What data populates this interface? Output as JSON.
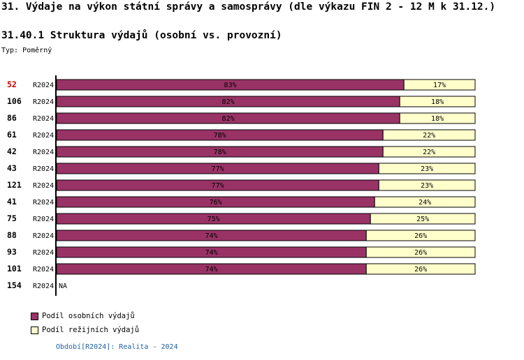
{
  "page": {
    "title": "31. Výdaje na výkon státní správy a samosprávy (dle výkazu FIN 2 - 12 M k 31.12.)",
    "subtitle": "31.40.1 Struktura výdajů (osobní vs. provozní)",
    "type_label": "Typ: Poměrný"
  },
  "legend": {
    "personal": "Podíl osobních výdajů",
    "operating": "Podíl režijních výdajů"
  },
  "footer": "Období[R2024]: Realita - 2024",
  "colors": {
    "personal": "#993366",
    "operating": "#ffffcc",
    "highlight": "#cc0000"
  },
  "chart_data": {
    "type": "bar",
    "stacked": true,
    "orientation": "horizontal",
    "unit": "%",
    "categories": [
      "52",
      "106",
      "86",
      "61",
      "42",
      "43",
      "121",
      "41",
      "75",
      "88",
      "93",
      "101",
      "154"
    ],
    "period_labels": [
      "R2024",
      "R2024",
      "R2024",
      "R2024",
      "R2024",
      "R2024",
      "R2024",
      "R2024",
      "R2024",
      "R2024",
      "R2024",
      "R2024",
      "R2024"
    ],
    "highlighted_category": "52",
    "series": [
      {
        "name": "Podíl osobních výdajů",
        "values": [
          83,
          82,
          82,
          78,
          78,
          77,
          77,
          76,
          75,
          74,
          74,
          74,
          null
        ]
      },
      {
        "name": "Podíl režijních výdajů",
        "values": [
          17,
          18,
          18,
          22,
          22,
          23,
          23,
          24,
          25,
          26,
          26,
          26,
          null
        ]
      }
    ],
    "missing_label": "NA",
    "xlim": [
      0,
      100
    ]
  }
}
